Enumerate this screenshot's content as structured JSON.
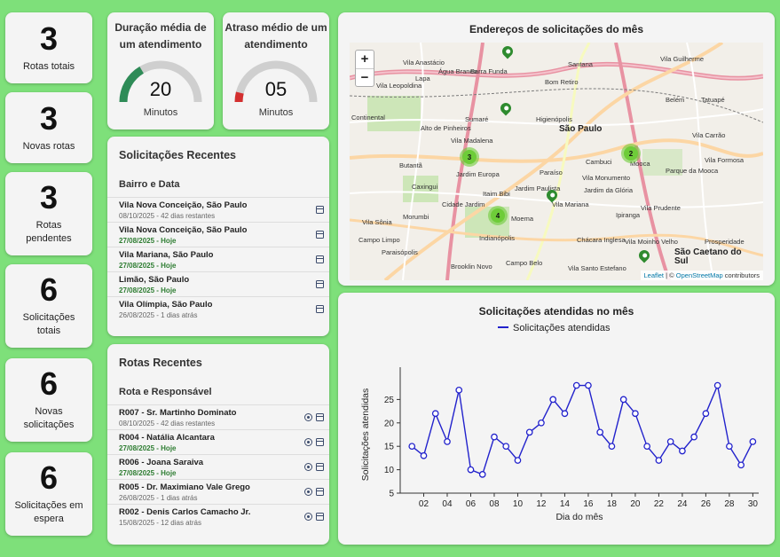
{
  "stats": [
    {
      "value": "3",
      "label": "Rotas totais"
    },
    {
      "value": "3",
      "label": "Novas rotas"
    },
    {
      "value": "3",
      "label": "Rotas pendentes"
    },
    {
      "value": "6",
      "label": "Solicitações totais"
    },
    {
      "value": "6",
      "label": "Novas solicitações"
    },
    {
      "value": "6",
      "label": "Solicitações em espera"
    }
  ],
  "gauges": [
    {
      "title": "Duração média de um atendimento",
      "value": "20",
      "unit": "Minutos",
      "fill_fraction": 0.33,
      "color": "#2e8b57"
    },
    {
      "title": "Atraso médio de um atendimento",
      "value": "05",
      "unit": "Minutos",
      "fill_fraction": 0.08,
      "color": "#d32f2f"
    }
  ],
  "recent_requests": {
    "title": "Solicitações Recentes",
    "column_header": "Bairro e Data",
    "items": [
      {
        "place": "Vila Nova Conceição, São Paulo",
        "date": "08/10/2025 - 42 dias restantes",
        "today": false
      },
      {
        "place": "Vila Nova Conceição, São Paulo",
        "date": "27/08/2025 - Hoje",
        "today": true
      },
      {
        "place": "Vila Mariana, São Paulo",
        "date": "27/08/2025 - Hoje",
        "today": true
      },
      {
        "place": "Limão, São Paulo",
        "date": "27/08/2025 - Hoje",
        "today": true
      },
      {
        "place": "Vila Olímpia, São Paulo",
        "date": "26/08/2025 - 1 dias atrás",
        "today": false
      }
    ]
  },
  "recent_routes": {
    "title": "Rotas Recentes",
    "column_header": "Rota e Responsável",
    "items": [
      {
        "route": "R007 - Sr. Martinho Dominato",
        "date": "08/10/2025 - 42 dias restantes",
        "today": false
      },
      {
        "route": "R004 - Natália Alcantara",
        "date": "27/08/2025 - Hoje",
        "today": true
      },
      {
        "route": "R006 - Joana Saraiva",
        "date": "27/08/2025 - Hoje",
        "today": true
      },
      {
        "route": "R005 - Dr. Maximiano Vale Grego",
        "date": "26/08/2025 - 1 dias atrás",
        "today": false
      },
      {
        "route": "R002 - Denis Carlos Camacho Jr.",
        "date": "15/08/2025 - 12 dias atrás",
        "today": false
      }
    ]
  },
  "map": {
    "title": "Endereços de solicitações do mês",
    "zoom_in": "+",
    "zoom_out": "−",
    "attribution_lib": "Leaflet",
    "attribution_sep": " | © ",
    "attribution_osm": "OpenStreetMap",
    "attribution_tail": " contributors",
    "clusters": [
      "3",
      "2",
      "4"
    ],
    "places": [
      {
        "name": "São Paulo",
        "big": true
      },
      {
        "name": "Barra Funda"
      },
      {
        "name": "Bom Retiro"
      },
      {
        "name": "Vila Leopoldina"
      },
      {
        "name": "Vila Anastácio"
      },
      {
        "name": "Lapa"
      },
      {
        "name": "Água Branca"
      },
      {
        "name": "Vila Sônia"
      },
      {
        "name": "Butantã"
      },
      {
        "name": "Jardim Europa"
      },
      {
        "name": "Cidade Jardim"
      },
      {
        "name": "Moema"
      },
      {
        "name": "Indianópolis"
      },
      {
        "name": "Brooklin Novo"
      },
      {
        "name": "Campo Belo"
      },
      {
        "name": "Paraisópolis"
      },
      {
        "name": "Morumbi"
      },
      {
        "name": "Cambuci"
      },
      {
        "name": "Vila Prudente"
      },
      {
        "name": "Ipiranga"
      },
      {
        "name": "Paraíso"
      },
      {
        "name": "Vila Mariana"
      },
      {
        "name": "Jardim da Glória"
      },
      {
        "name": "Vila Monumento"
      },
      {
        "name": "Mooca"
      },
      {
        "name": "Belém"
      },
      {
        "name": "Tatuapé"
      },
      {
        "name": "Vila Formosa"
      },
      {
        "name": "Santana"
      },
      {
        "name": "Vila Guilherme"
      },
      {
        "name": "São Caetano do Sul",
        "big": true
      },
      {
        "name": "Prosperidade"
      },
      {
        "name": "Sumaré"
      },
      {
        "name": "Higienópolis"
      },
      {
        "name": "Alto de Pinheiros"
      },
      {
        "name": "Vila Madalena"
      },
      {
        "name": "Caxingui"
      },
      {
        "name": "Jardim Paulista"
      },
      {
        "name": "Chácara Inglesa"
      },
      {
        "name": "Vila Santo Estefano"
      },
      {
        "name": "Vila Carrão"
      },
      {
        "name": "Continental"
      },
      {
        "name": "Parque da Mooca"
      },
      {
        "name": "Campo Limpo"
      },
      {
        "name": "Itaim Bibi"
      },
      {
        "name": "Vila Moinho Velho"
      }
    ]
  },
  "chart_data": {
    "type": "line",
    "title": "Solicitações atendidas no mês",
    "xlabel": "Dia do mês",
    "ylabel": "Solicitações atendidas",
    "legend": "top",
    "grid": false,
    "x": [
      1,
      2,
      3,
      4,
      5,
      6,
      7,
      8,
      9,
      10,
      11,
      12,
      13,
      14,
      15,
      16,
      17,
      18,
      19,
      20,
      21,
      22,
      23,
      24,
      25,
      26,
      27,
      28,
      29,
      30
    ],
    "x_ticks": [
      "02",
      "04",
      "06",
      "08",
      "10",
      "12",
      "14",
      "16",
      "18",
      "20",
      "22",
      "24",
      "26",
      "28",
      "30"
    ],
    "y_ticks": [
      5,
      10,
      15,
      20,
      25
    ],
    "ylim": [
      5,
      30
    ],
    "xlim": [
      0,
      30.5
    ],
    "series": [
      {
        "name": "Solicitações atendidas",
        "color": "#2222cc",
        "values": [
          15,
          13,
          22,
          16,
          27,
          10,
          9,
          17,
          15,
          12,
          18,
          20,
          25,
          22,
          28,
          28,
          18,
          15,
          25,
          22,
          15,
          12,
          16,
          14,
          17,
          22,
          28,
          15,
          11,
          16
        ]
      }
    ]
  }
}
